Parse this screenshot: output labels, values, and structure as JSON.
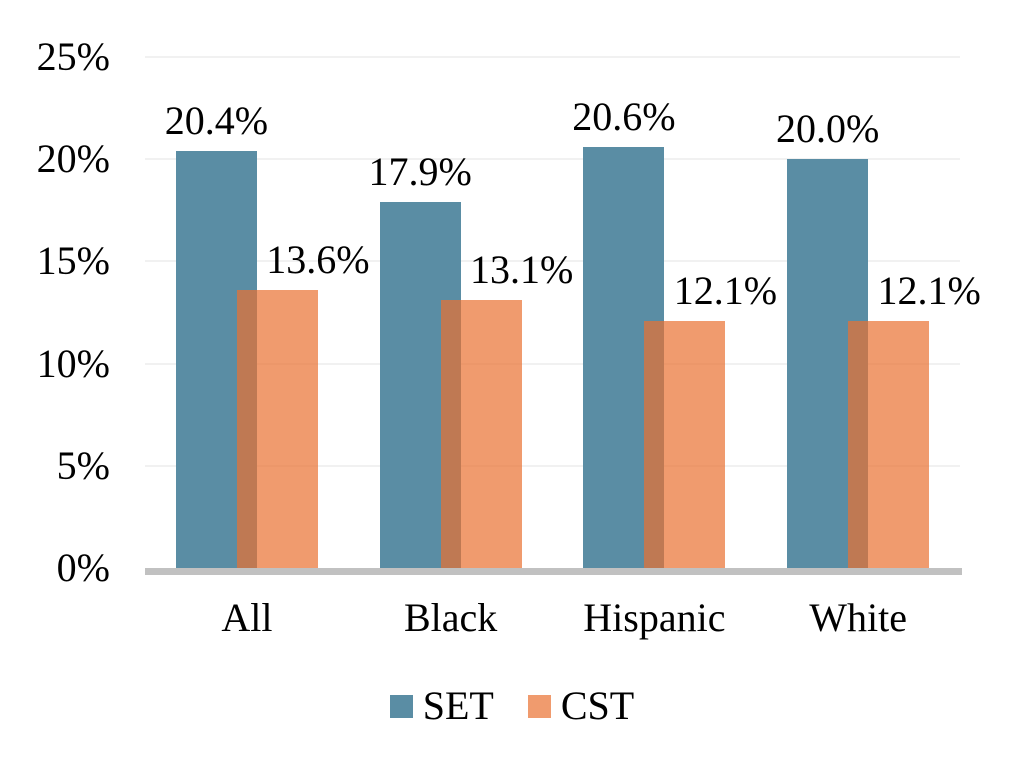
{
  "page": {
    "background": "#ffffff"
  },
  "colors": {
    "gridline": "#f1f1f1",
    "baseline": "#c1c1c1",
    "text": "#000000"
  },
  "chart_data": {
    "type": "bar",
    "title": "",
    "xlabel": "",
    "ylabel": "",
    "categories": [
      "All",
      "Black",
      "Hispanic",
      "White"
    ],
    "series": [
      {
        "name": "SET",
        "color": "#5a8da4",
        "opacity": 1,
        "values": [
          20.4,
          17.9,
          20.6,
          20.0
        ],
        "labels": [
          "20.4%",
          "17.9%",
          "20.6%",
          "20.0%"
        ]
      },
      {
        "name": "CST",
        "color": "#ea7030",
        "opacity": 0.7,
        "values": [
          13.6,
          13.1,
          12.1,
          12.1
        ],
        "labels": [
          "13.6%",
          "13.1%",
          "12.1%",
          "12.1%"
        ]
      }
    ],
    "y_axis": {
      "min": 0,
      "max": 25,
      "step": 5,
      "ticks": [
        "0%",
        "5%",
        "10%",
        "15%",
        "20%",
        "25%"
      ]
    },
    "grid": true,
    "legend_position": "bottom"
  }
}
